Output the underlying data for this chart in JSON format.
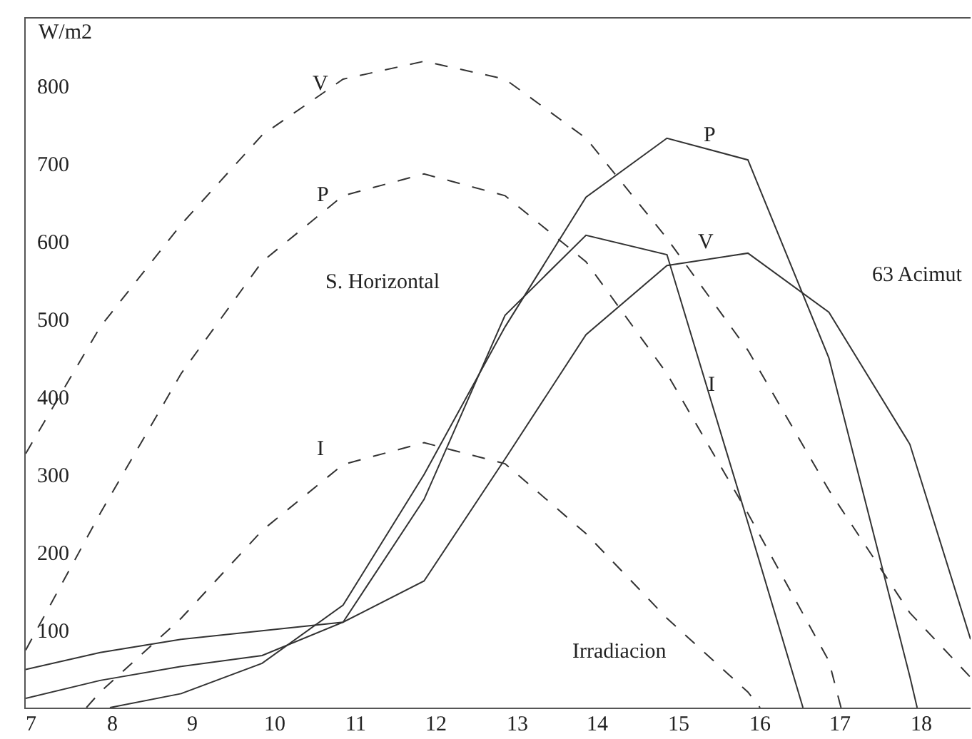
{
  "chart_data": {
    "type": "line",
    "ylabel": "W/m2",
    "xlim": [
      6.93,
      18.6
    ],
    "ylim": [
      0,
      887
    ],
    "xticks": [
      7,
      8,
      9,
      10,
      11,
      12,
      13,
      14,
      15,
      16,
      17,
      18
    ],
    "yticks": [
      100,
      200,
      300,
      400,
      500,
      600,
      700,
      800
    ],
    "series": [
      {
        "name": "V",
        "color": "#333333",
        "line_style": "dashed",
        "x": [
          6.93,
          7.85,
          8.85,
          9.85,
          10.85,
          11.85,
          12.85,
          13.85,
          14.85,
          15.85,
          16.85,
          17.85,
          18.6
        ],
        "values": [
          327,
          490,
          622,
          737,
          809,
          832,
          809,
          733,
          604,
          460,
          280,
          122,
          39
        ]
      },
      {
        "name": "P",
        "color": "#333333",
        "line_style": "dashed",
        "x": [
          6.93,
          7.85,
          8.85,
          9.85,
          10.85,
          11.85,
          12.85,
          13.85,
          14.85,
          15.85,
          16.85,
          17.0
        ],
        "values": [
          74,
          250,
          430,
          574,
          659,
          687,
          659,
          574,
          430,
          250,
          60,
          0
        ]
      },
      {
        "name": "I",
        "color": "#333333",
        "line_style": "dashed",
        "x": [
          7.68,
          7.85,
          8.85,
          9.85,
          10.85,
          11.85,
          12.85,
          13.85,
          14.85,
          15.85,
          16.0
        ],
        "values": [
          0,
          20,
          115,
          228,
          313,
          341,
          314,
          224,
          115,
          20,
          0
        ]
      },
      {
        "name": "P",
        "color": "#333333",
        "line_style": "solid",
        "x": [
          7.97,
          8.85,
          9.85,
          10.85,
          11.85,
          12.85,
          13.85,
          14.85,
          15.85,
          16.85,
          17.85,
          17.94
        ],
        "values": [
          0,
          18,
          57,
          132,
          300,
          490,
          657,
          733,
          705,
          450,
          40,
          0
        ]
      },
      {
        "name": "V",
        "color": "#333333",
        "line_style": "solid",
        "x": [
          6.93,
          7.85,
          8.85,
          9.85,
          10.85,
          11.85,
          12.85,
          13.85,
          14.85,
          15.85,
          16.85,
          17.85,
          18.6
        ],
        "values": [
          49,
          71,
          88,
          99,
          110,
          163,
          320,
          480,
          569,
          585,
          509,
          339,
          88
        ]
      },
      {
        "name": "I",
        "color": "#333333",
        "line_style": "solid",
        "x": [
          6.93,
          7.85,
          8.85,
          9.85,
          10.85,
          11.85,
          12.85,
          13.85,
          14.85,
          15.85,
          16.53
        ],
        "values": [
          12,
          35,
          53,
          67,
          110,
          268,
          505,
          608,
          583,
          238,
          0
        ]
      }
    ],
    "annotations": [
      "S. Horizontal",
      "63 Acimut",
      "Irradiacion"
    ]
  }
}
